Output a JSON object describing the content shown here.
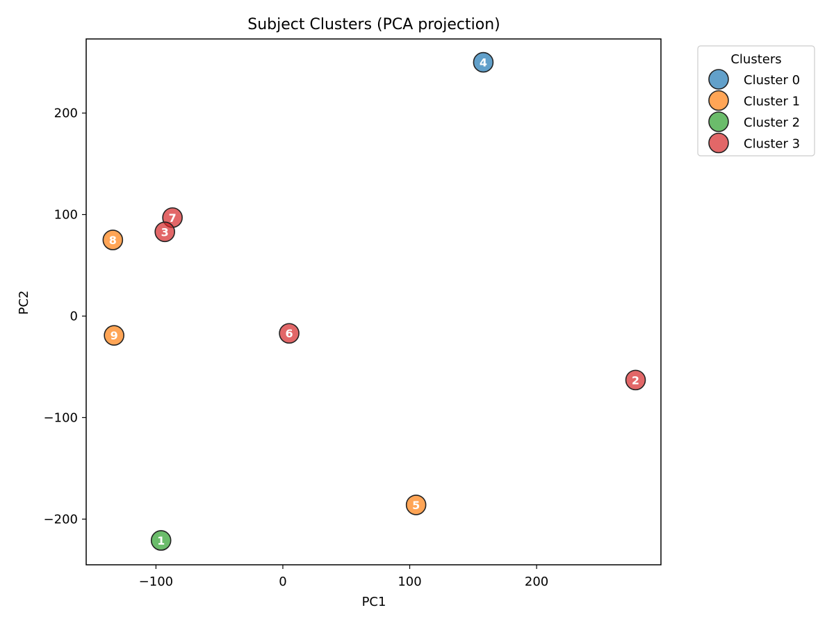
{
  "chart_data": {
    "type": "scatter",
    "title": "Subject Clusters (PCA projection)",
    "xlabel": "PC1",
    "ylabel": "PC2",
    "xlim": [
      -155,
      298
    ],
    "ylim": [
      -245,
      273
    ],
    "xticks": [
      -100,
      0,
      100,
      200
    ],
    "yticks": [
      -200,
      -100,
      0,
      100,
      200
    ],
    "xtick_labels": [
      "−100",
      "0",
      "100",
      "200"
    ],
    "ytick_labels": [
      "−200",
      "−100",
      "0",
      "100",
      "200"
    ],
    "grid": false,
    "legend": {
      "title": "Clusters",
      "placement": "outside-top-right"
    },
    "series": [
      {
        "name": "Cluster 0",
        "color": "#1f77b4",
        "points": [
          {
            "label": "4",
            "x": 158,
            "y": 250
          }
        ]
      },
      {
        "name": "Cluster 1",
        "color": "#ff7f0e",
        "points": [
          {
            "label": "8",
            "x": -134,
            "y": 75
          },
          {
            "label": "9",
            "x": -133,
            "y": -19
          },
          {
            "label": "5",
            "x": 105,
            "y": -186
          }
        ]
      },
      {
        "name": "Cluster 2",
        "color": "#2ca02c",
        "points": [
          {
            "label": "1",
            "x": -96,
            "y": -221
          }
        ]
      },
      {
        "name": "Cluster 3",
        "color": "#d62728",
        "points": [
          {
            "label": "7",
            "x": -87,
            "y": 97
          },
          {
            "label": "3",
            "x": -93,
            "y": 83
          },
          {
            "label": "6",
            "x": 5,
            "y": -17
          },
          {
            "label": "2",
            "x": 278,
            "y": -63
          }
        ]
      }
    ]
  }
}
